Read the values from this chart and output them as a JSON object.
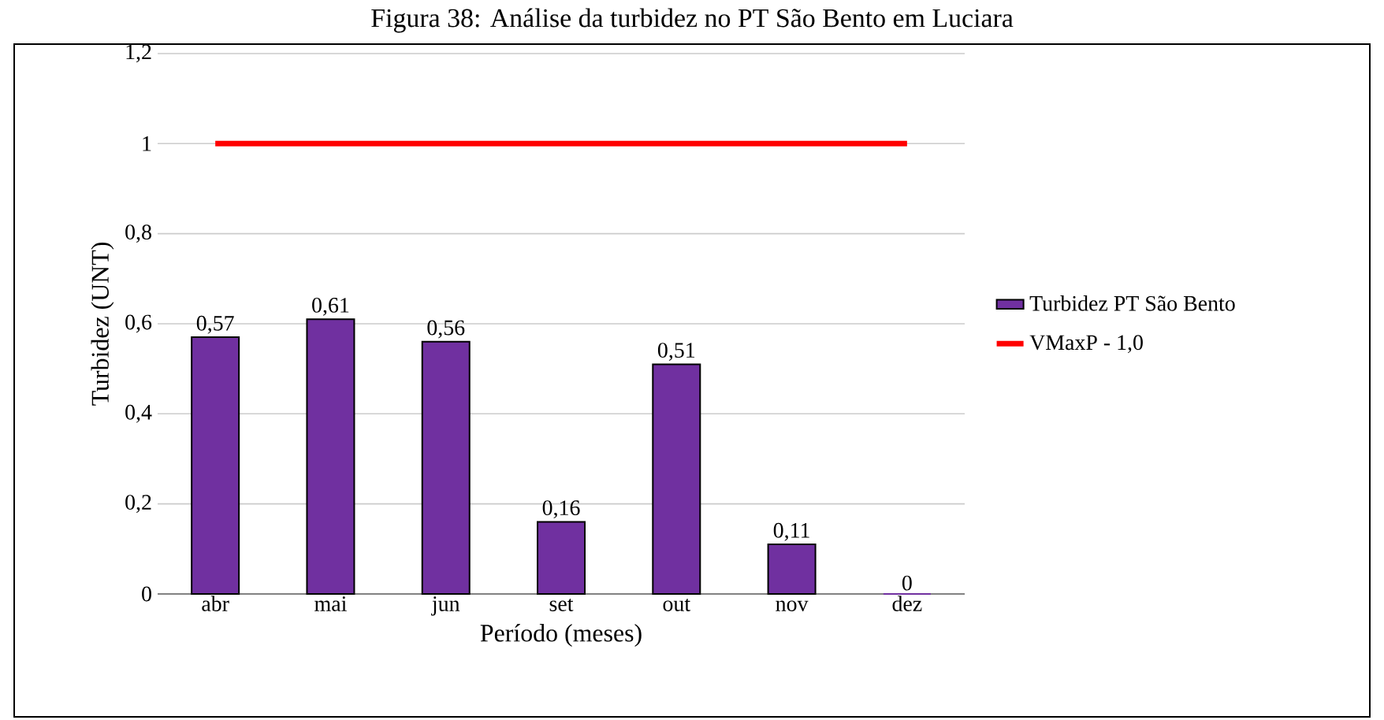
{
  "chart_data": {
    "type": "bar",
    "title": "Figura 38: Análise da turbidez no PT São Bento em Luciara",
    "xlabel": "Período (meses)",
    "ylabel": "Turbidez (UNT)",
    "categories": [
      "abr",
      "mai",
      "jun",
      "set",
      "out",
      "nov",
      "dez"
    ],
    "series": [
      {
        "name": "Turbidez PT São Bento",
        "color": "#7030a0",
        "values": [
          0.57,
          0.61,
          0.56,
          0.16,
          0.51,
          0.11,
          0
        ],
        "value_labels": [
          "0,57",
          "0,61",
          "0,56",
          "0,16",
          "0,51",
          "0,11",
          "0"
        ]
      },
      {
        "name": "VMaxP - 1,0",
        "type": "line",
        "color": "#ff0000",
        "values": [
          1,
          1,
          1,
          1,
          1,
          1,
          1
        ]
      }
    ],
    "ylim": [
      0,
      1.2
    ],
    "yticks": [
      0,
      {
        "value": 0.2,
        "label": "0,2"
      },
      {
        "value": 0.4,
        "label": "0,4"
      },
      {
        "value": 0.6,
        "label": "0,6"
      },
      {
        "value": 0.8,
        "label": "0,8"
      },
      1,
      {
        "value": 1.2,
        "label": "1,2"
      }
    ],
    "grid": "y",
    "legend": "right",
    "marker": "none"
  }
}
